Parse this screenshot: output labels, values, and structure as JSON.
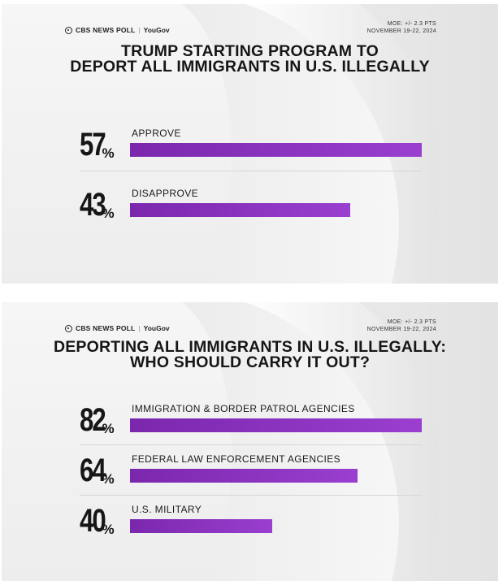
{
  "panels": [
    {
      "brand": {
        "network": "CBS NEWS POLL",
        "partner": "YouGov"
      },
      "moe": {
        "margin": "MOE: +/- 2.3 PTS",
        "dates": "NOVEMBER 19-22, 2024"
      },
      "title_line1": "TRUMP STARTING PROGRAM TO",
      "title_line2": "DEPORT ALL IMMIGRANTS IN U.S. ILLEGALLY",
      "rows": [
        {
          "value": "57",
          "sign": "%",
          "label": "APPROVE"
        },
        {
          "value": "43",
          "sign": "%",
          "label": "DISAPPROVE"
        }
      ]
    },
    {
      "brand": {
        "network": "CBS NEWS POLL",
        "partner": "YouGov"
      },
      "moe": {
        "margin": "MOE: +/- 2.3 PTS",
        "dates": "NOVEMBER 19-22, 2024"
      },
      "title_line1": "DEPORTING ALL IMMIGRANTS IN U.S. ILLEGALLY:",
      "title_line2": "WHO SHOULD CARRY IT OUT?",
      "rows": [
        {
          "value": "82",
          "sign": "%",
          "label": "IMMIGRATION & BORDER PATROL AGENCIES"
        },
        {
          "value": "64",
          "sign": "%",
          "label": "FEDERAL LAW ENFORCEMENT AGENCIES"
        },
        {
          "value": "40",
          "sign": "%",
          "label": "U.S. MILITARY"
        }
      ]
    }
  ],
  "chart_data": [
    {
      "type": "bar",
      "title": "TRUMP STARTING PROGRAM TO DEPORT ALL IMMIGRANTS IN U.S. ILLEGALLY",
      "categories": [
        "APPROVE",
        "DISAPPROVE"
      ],
      "values": [
        57,
        43
      ],
      "ylim": [
        0,
        57
      ],
      "orientation": "horizontal",
      "color": "#8a33c2"
    },
    {
      "type": "bar",
      "title": "DEPORTING ALL IMMIGRANTS IN U.S. ILLEGALLY: WHO SHOULD CARRY IT OUT?",
      "categories": [
        "IMMIGRATION & BORDER PATROL AGENCIES",
        "FEDERAL LAW ENFORCEMENT AGENCIES",
        "U.S. MILITARY"
      ],
      "values": [
        82,
        64,
        40
      ],
      "ylim": [
        0,
        82
      ],
      "orientation": "horizontal",
      "color": "#8a33c2"
    }
  ]
}
